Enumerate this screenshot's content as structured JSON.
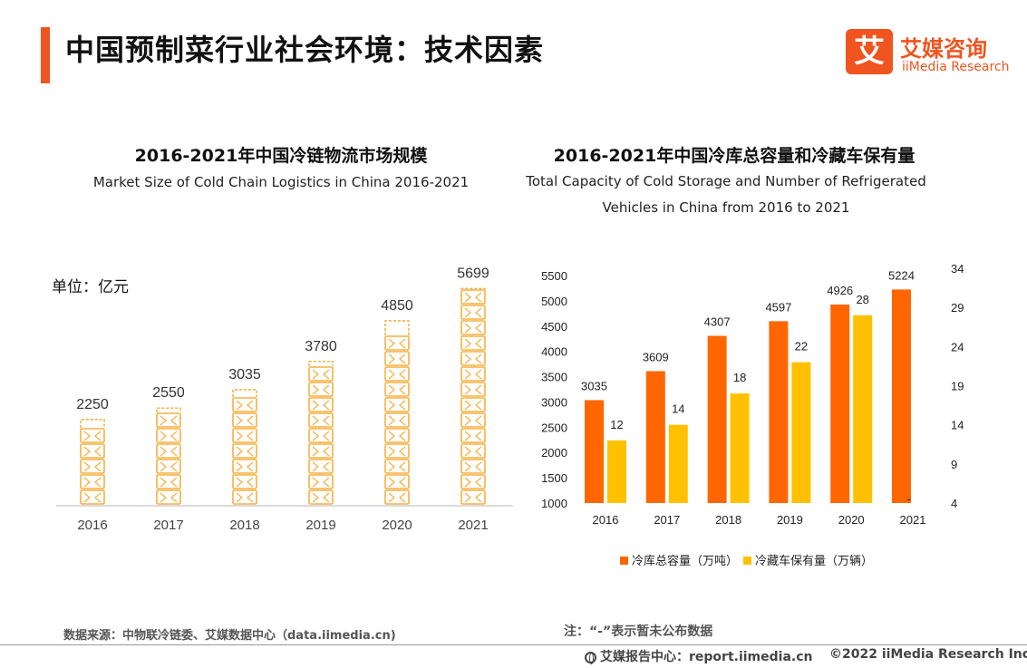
{
  "colors": {
    "accent": "#f0541f",
    "bar_orange": "#ff6600",
    "bar_yellow": "#ffc000",
    "pallet": "#f5b041"
  },
  "header": {
    "title": "中国预制菜行业社会环境：技术因素"
  },
  "logo": {
    "cn": "艾媒咨询",
    "en": "iiMedia Research",
    "glyph": "艾"
  },
  "left_chart": {
    "title": "2016-2021年中国冷链物流市场规模",
    "subtitle": "Market Size of Cold Chain Logistics in China 2016-2021",
    "unit": "单位：亿元"
  },
  "right_chart": {
    "title": "2016-2021年中国冷库总容量和冷藏车保有量",
    "subtitle_line1": "Total Capacity of Cold Storage and Number of Refrigerated",
    "subtitle_line2": "Vehicles in China from 2016 to 2021",
    "missing_marker": "-"
  },
  "legend": {
    "s1": "冷库总容量（万吨）",
    "s2": "冷藏车保有量（万辆）"
  },
  "footer": {
    "source": "数据来源：中物联冷链委、艾媒数据中心（data.iimedia.cn)",
    "note": "注：“-”表示暂未公布数据",
    "site": "艾媒报告中心：report.iimedia.cn",
    "copyright": "©2022  iiMedia Research  Inc"
  },
  "chart_data": [
    {
      "type": "bar",
      "title": "2016-2021年中国冷链物流市场规模",
      "subtitle": "Market Size of Cold Chain Logistics in China 2016-2021",
      "unit": "单位：亿元",
      "categories": [
        "2016",
        "2017",
        "2018",
        "2019",
        "2020",
        "2021"
      ],
      "values": [
        2250,
        2550,
        3035,
        3780,
        4850,
        5699
      ],
      "ylim": [
        0,
        5900
      ]
    },
    {
      "type": "bar",
      "title": "2016-2021年中国冷库总容量和冷藏车保有量",
      "subtitle": "Total Capacity of Cold Storage and Number of Refrigerated Vehicles in China from 2016 to 2021",
      "categories": [
        "2016",
        "2017",
        "2018",
        "2019",
        "2020",
        "2021"
      ],
      "series": [
        {
          "name": "冷库总容量（万吨）",
          "axis": "left",
          "values": [
            3035,
            3609,
            4307,
            4597,
            4926,
            5224
          ]
        },
        {
          "name": "冷藏车保有量（万辆）",
          "axis": "right",
          "values": [
            12,
            14,
            18,
            22,
            28,
            null
          ]
        }
      ],
      "left_axis": {
        "ylim": [
          1000,
          5500
        ],
        "ticks": [
          1000,
          1500,
          2000,
          2500,
          3000,
          3500,
          4000,
          4500,
          5000,
          5500
        ]
      },
      "right_axis": {
        "ylim": [
          4,
          34
        ],
        "ticks": [
          4,
          9,
          14,
          19,
          24,
          29,
          34
        ]
      }
    }
  ]
}
